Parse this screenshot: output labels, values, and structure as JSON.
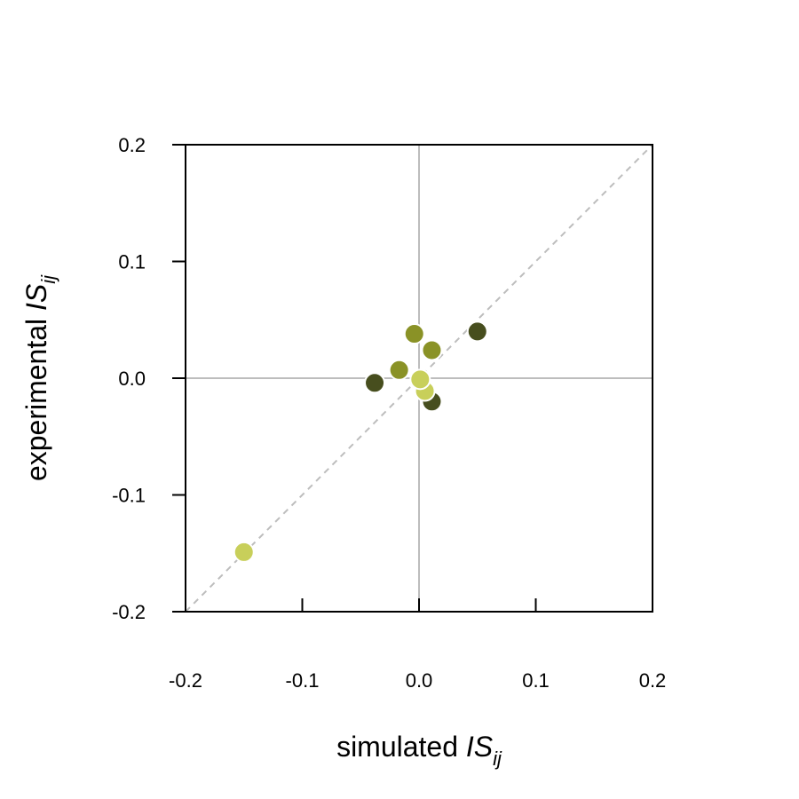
{
  "chart_data": {
    "type": "scatter",
    "xlabel": {
      "prefix": "simulated ",
      "symbol": "IS",
      "subscript": "ij"
    },
    "ylabel": {
      "prefix": "experimental ",
      "symbol": "IS",
      "subscript": "ij"
    },
    "xlim": [
      -0.2,
      0.2
    ],
    "ylim": [
      -0.2,
      0.2
    ],
    "x_ticks": [
      "-0.2",
      "-0.1",
      "0.0",
      "0.1",
      "0.2"
    ],
    "y_ticks": [
      "-0.2",
      "-0.1",
      "0.0",
      "0.1",
      "0.2"
    ],
    "reference_lines": {
      "zero_lines": true,
      "identity_line": "dashed"
    },
    "grid": false,
    "points": [
      {
        "x": -0.15,
        "y": -0.149,
        "color": "#c8cf5a"
      },
      {
        "x": -0.038,
        "y": -0.004,
        "color": "#474e1e"
      },
      {
        "x": -0.017,
        "y": 0.007,
        "color": "#8a9226"
      },
      {
        "x": -0.004,
        "y": 0.038,
        "color": "#8a9226"
      },
      {
        "x": 0.011,
        "y": 0.024,
        "color": "#8a9226"
      },
      {
        "x": 0.05,
        "y": 0.04,
        "color": "#474e1e"
      },
      {
        "x": 0.011,
        "y": -0.02,
        "color": "#474e1e"
      },
      {
        "x": 0.005,
        "y": -0.011,
        "color": "#c8cf5a"
      },
      {
        "x": 0.001,
        "y": -0.001,
        "color": "#c8cf5a"
      }
    ]
  }
}
